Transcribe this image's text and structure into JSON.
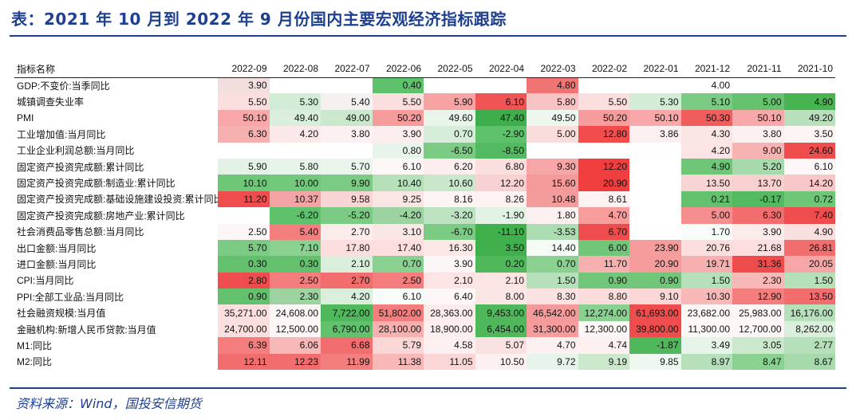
{
  "title": "表：2021 年 10 月到 2022 年 9 月份国内主要宏观经济指标跟踪",
  "source": "资料来源：Wind，国投安信期货",
  "table": {
    "header": [
      "指标名称",
      "2022-09",
      "2022-08",
      "2022-07",
      "2022-06",
      "2022-05",
      "2022-04",
      "2022-03",
      "2022-02",
      "2022-01",
      "2021-12",
      "2021-11",
      "2021-10"
    ],
    "rows": [
      {
        "name": "GDP:不变价:当季同比",
        "values": [
          "3.90",
          "",
          "",
          "0.40",
          "",
          "",
          "4.80",
          "",
          "",
          "4.00",
          "",
          ""
        ]
      },
      {
        "name": "城镇调查失业率",
        "values": [
          "5.50",
          "5.30",
          "5.40",
          "5.50",
          "5.90",
          "6.10",
          "5.80",
          "5.50",
          "5.30",
          "5.10",
          "5.00",
          "4.90"
        ]
      },
      {
        "name": "PMI",
        "values": [
          "50.10",
          "49.40",
          "49.00",
          "50.20",
          "49.60",
          "47.40",
          "49.50",
          "50.20",
          "50.10",
          "50.30",
          "50.10",
          "49.20"
        ]
      },
      {
        "name": "工业增加值:当月同比",
        "values": [
          "6.30",
          "4.20",
          "3.80",
          "3.90",
          "0.70",
          "-2.90",
          "5.00",
          "12.80",
          "3.86",
          "4.30",
          "3.80",
          "3.50"
        ]
      },
      {
        "name": "工业企业利润总额:当月同比",
        "values": [
          "",
          "",
          "",
          "0.80",
          "-6.50",
          "-8.50",
          "",
          "",
          "",
          "4.20",
          "9.00",
          "24.60"
        ]
      },
      {
        "name": "固定资产投资完成额:累计同比",
        "values": [
          "5.90",
          "5.80",
          "5.70",
          "6.10",
          "6.20",
          "6.80",
          "9.30",
          "12.20",
          "",
          "4.90",
          "5.20",
          "6.10"
        ]
      },
      {
        "name": "固定资产投资完成额:制造业:累计同比",
        "values": [
          "10.10",
          "10.00",
          "9.90",
          "10.40",
          "10.60",
          "12.20",
          "15.60",
          "20.90",
          "",
          "13.50",
          "13.70",
          "14.20"
        ]
      },
      {
        "name": "固定资产投资完成额:基础设施建设投资:累计同比",
        "values": [
          "11.20",
          "10.37",
          "9.58",
          "9.25",
          "8.16",
          "8.26",
          "10.48",
          "8.61",
          "",
          "0.21",
          "-0.17",
          "0.72"
        ]
      },
      {
        "name": "固定资产投资完成额:房地产业:累计同比",
        "values": [
          "",
          "-6.20",
          "-5.20",
          "-4.20",
          "-3.20",
          "-1.90",
          "1.80",
          "4.70",
          "",
          "5.00",
          "6.30",
          "7.40"
        ]
      },
      {
        "name": "社会消费品零售总额:当月同比",
        "values": [
          "2.50",
          "5.40",
          "2.70",
          "3.10",
          "-6.70",
          "-11.10",
          "-3.53",
          "6.70",
          "",
          "1.70",
          "3.90",
          "4.90"
        ]
      },
      {
        "name": "出口金额:当月同比",
        "values": [
          "5.70",
          "7.10",
          "17.80",
          "17.40",
          "16.30",
          "3.50",
          "14.40",
          "6.00",
          "23.90",
          "20.76",
          "21.68",
          "26.81"
        ]
      },
      {
        "name": "进口金额:当月同比",
        "values": [
          "0.30",
          "0.30",
          "2.10",
          "0.70",
          "3.90",
          "0.20",
          "0.70",
          "11.70",
          "20.90",
          "19.71",
          "31.36",
          "20.05"
        ]
      },
      {
        "name": "CPI:当月同比",
        "values": [
          "2.80",
          "2.50",
          "2.70",
          "2.50",
          "2.10",
          "2.10",
          "1.50",
          "0.90",
          "0.90",
          "1.50",
          "2.30",
          "1.50"
        ]
      },
      {
        "name": "PPI:全部工业品:当月同比",
        "values": [
          "0.90",
          "2.30",
          "4.20",
          "6.10",
          "6.40",
          "8.00",
          "8.30",
          "8.80",
          "9.10",
          "10.30",
          "12.90",
          "13.50"
        ]
      },
      {
        "name": "社会融资规模:当月值",
        "values": [
          "35,271.00",
          "24,608.00",
          "7,722.00",
          "51,802.00",
          "28,363.00",
          "9,453.00",
          "46,542.00",
          "12,274.00",
          "61,693.00",
          "23,682.00",
          "25,983.00",
          "16,176.00"
        ]
      },
      {
        "name": "金融机构:新增人民币贷款:当月值",
        "values": [
          "24,700.00",
          "12,500.00",
          "6,790.00",
          "28,100.00",
          "18,900.00",
          "6,454.00",
          "31,300.00",
          "12,300.00",
          "39,800.00",
          "11,300.00",
          "12,700.00",
          "8,262.00"
        ]
      },
      {
        "name": "M1:同比",
        "values": [
          "6.39",
          "6.06",
          "6.68",
          "5.79",
          "4.58",
          "5.07",
          "4.70",
          "4.74",
          "-1.87",
          "3.49",
          "3.05",
          "2.77"
        ]
      },
      {
        "name": "M2:同比",
        "values": [
          "12.11",
          "12.23",
          "11.99",
          "11.38",
          "11.05",
          "10.50",
          "9.72",
          "9.19",
          "9.85",
          "8.97",
          "8.47",
          "8.67"
        ]
      }
    ],
    "colors": [
      [
        "#f3dede",
        "",
        "",
        "#5ec16b",
        "",
        "",
        "#f07474",
        "",
        "",
        "#ffffff",
        "",
        ""
      ],
      [
        "#fbdede",
        "#d3ecd5",
        "#f6f1f1",
        "#fbdede",
        "#f7a3a3",
        "#ef5353",
        "#f7c3c3",
        "#fbdede",
        "#d3ecd5",
        "#7ccb84",
        "#66c26e",
        "#47b451"
      ],
      [
        "#f8a8a8",
        "#d9eedb",
        "#cbe8cd",
        "#f69c9c",
        "#e9f5ea",
        "#3dae4b",
        "#edf7ee",
        "#f69c9c",
        "#f8a8a8",
        "#ef5d5d",
        "#f8a8a8",
        "#b9e0bd"
      ],
      [
        "#f6b0b0",
        "#fbe9e9",
        "#fdf0f0",
        "#fdeeee",
        "#d6eed9",
        "#5ec16b",
        "#f9dcdc",
        "#f24c4c",
        "#fdf0f0",
        "#fbe6e6",
        "#fdf0f0",
        "#fdf4f4"
      ],
      [
        "",
        "",
        "",
        "#e7f4e9",
        "#7ccb84",
        "#54ba61",
        "",
        "",
        "",
        "#fce4e4",
        "#f7b2b2",
        "#ef4d4d"
      ],
      [
        "#e2f2e4",
        "#e7f4e9",
        "#eaf5eb",
        "#fdf7f7",
        "#fceeee",
        "#fbdede",
        "#f6a6a6",
        "#f03d3d",
        "",
        "#6ec777",
        "#a6d9ab",
        "#fdf7f7"
      ],
      [
        "#6ec777",
        "#72c87b",
        "#7ccb84",
        "#b6e0ba",
        "#c8e7cb",
        "#f8d2d2",
        "#f59a9a",
        "#f03d3d",
        "",
        "#f8d4d4",
        "#f8d0d0",
        "#f8c8c8"
      ],
      [
        "#ef4d4d",
        "#f4a4a4",
        "#f9d4d4",
        "#fbe4e4",
        "#fdf4f4",
        "#fdf2f2",
        "#f49c9c",
        "#fdf2f2",
        "",
        "#63c06d",
        "#54ba61",
        "#6ec777"
      ],
      [
        "",
        "#5ec16b",
        "#7ccb84",
        "#9cd3a1",
        "#bde3c1",
        "#e2f2e4",
        "#fdf0f0",
        "#f89c9c",
        "",
        "#f58e8e",
        "#f26d6d",
        "#ef4d4d"
      ],
      [
        "#fdf6f6",
        "#f47e7e",
        "#fcecec",
        "#fbe6e6",
        "#7ccb84",
        "#40b04d",
        "#acdcb1",
        "#ef4d4d",
        "",
        "#f8fcf8",
        "#fcebeb",
        "#fbdede"
      ],
      [
        "#7ccb84",
        "#8ad191",
        "#fcdede",
        "#fcdede",
        "#fde8e8",
        "#40b04d",
        "#f5fbf5",
        "#71c67a",
        "#f69c9c",
        "#fcdede",
        "#fcdede",
        "#f26d6d"
      ],
      [
        "#63c06d",
        "#63c06d",
        "#d9eedb",
        "#8ad191",
        "#fdf6f6",
        "#4fb85b",
        "#8ad191",
        "#f7b0b0",
        "#f69c9c",
        "#f7b0b0",
        "#ef4d4d",
        "#f6a6a6"
      ],
      [
        "#ef4d4d",
        "#f47e7e",
        "#f26d6d",
        "#f47e7e",
        "#fce4e4",
        "#fce4e4",
        "#b6e0ba",
        "#71c67a",
        "#71c67a",
        "#b6e0ba",
        "#f8b8b8",
        "#b6e0ba"
      ],
      [
        "#63c06d",
        "#9cd3a1",
        "#d9eedb",
        "#f8fcf8",
        "#fdf7f7",
        "#fbe6e6",
        "#fbe2e2",
        "#fbdcdc",
        "#fbd6d6",
        "#f8b8b8",
        "#f47e7e",
        "#f26d6d"
      ],
      [
        "#fbdede",
        "#fdf6f6",
        "#4fb85b",
        "#f47e7e",
        "#fcebeb",
        "#4fb85b",
        "#f59a9a",
        "#8ad191",
        "#ef4d4d",
        "#fdf6f6",
        "#fdf6f6",
        "#b6e0ba"
      ],
      [
        "#fbdede",
        "#fdf6f6",
        "#63c06d",
        "#f7b0b0",
        "#fceeee",
        "#4fb85b",
        "#f69c9c",
        "#fdf6f6",
        "#ef4d4d",
        "#fdf8f8",
        "#fdf6f6",
        "#d9eedb"
      ],
      [
        "#f47e7e",
        "#f8b8b8",
        "#f26d6d",
        "#fbd6d6",
        "#fdf0f0",
        "#fbe2e2",
        "#fdf0f0",
        "#fdf0f0",
        "#4fb85b",
        "#e7f4e9",
        "#cbe8cd",
        "#b6e0ba"
      ],
      [
        "#f26d6d",
        "#f26d6d",
        "#f47e7e",
        "#f8b8b8",
        "#fbd6d6",
        "#fdf0f0",
        "#e7f4e9",
        "#cbe8cd",
        "#eef8ef",
        "#b6e0ba",
        "#8ad191",
        "#a6d9ab"
      ]
    ]
  }
}
